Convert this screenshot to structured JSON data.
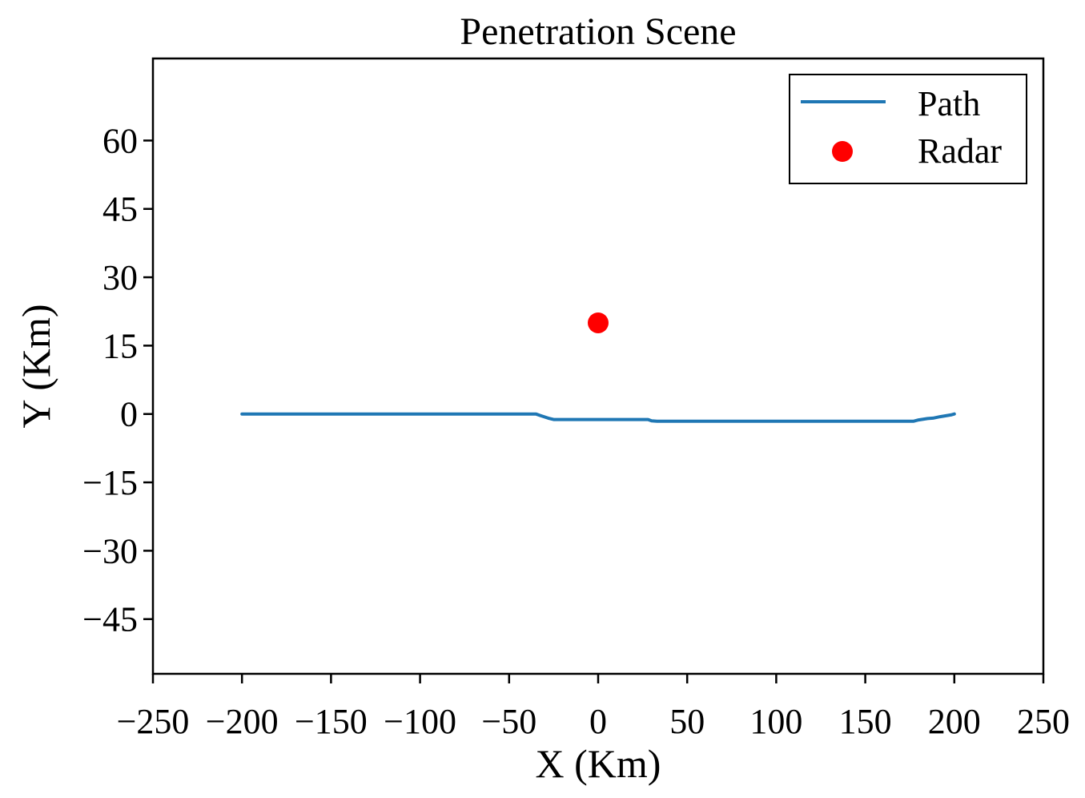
{
  "chart_data": {
    "type": "line",
    "title": "Penetration Scene",
    "xlabel": "X (Km)",
    "ylabel": "Y (Km)",
    "xlim": [
      -250,
      250
    ],
    "ylim": [
      -57,
      78
    ],
    "xticks": [
      -250,
      -200,
      -150,
      -100,
      -50,
      0,
      50,
      100,
      150,
      200,
      250
    ],
    "xtick_labels": [
      "−250",
      "−200",
      "−150",
      "−100",
      "−50",
      "0",
      "50",
      "100",
      "150",
      "200",
      "250"
    ],
    "yticks": [
      60,
      45,
      30,
      15,
      0,
      -15,
      -30,
      -45
    ],
    "ytick_labels": [
      "60",
      "45",
      "30",
      "15",
      "0",
      "−15",
      "−30",
      "−45"
    ],
    "grid": false,
    "legend_position": "top-right",
    "series": [
      {
        "name": "Path",
        "kind": "line",
        "color": "#1f77b4",
        "x": [
          -200,
          -35,
          -32,
          -28,
          -25,
          -20,
          0,
          28,
          30,
          33,
          50,
          100,
          150,
          177,
          180,
          185,
          188,
          192,
          195,
          198,
          200
        ],
        "y": [
          0,
          0,
          -0.4,
          -0.9,
          -1.2,
          -1.2,
          -1.2,
          -1.2,
          -1.5,
          -1.6,
          -1.6,
          -1.6,
          -1.6,
          -1.6,
          -1.3,
          -1.0,
          -0.9,
          -0.6,
          -0.4,
          -0.2,
          0
        ]
      },
      {
        "name": "Radar",
        "kind": "point",
        "color": "#ff0000",
        "x": [
          0
        ],
        "y": [
          20
        ]
      }
    ]
  }
}
